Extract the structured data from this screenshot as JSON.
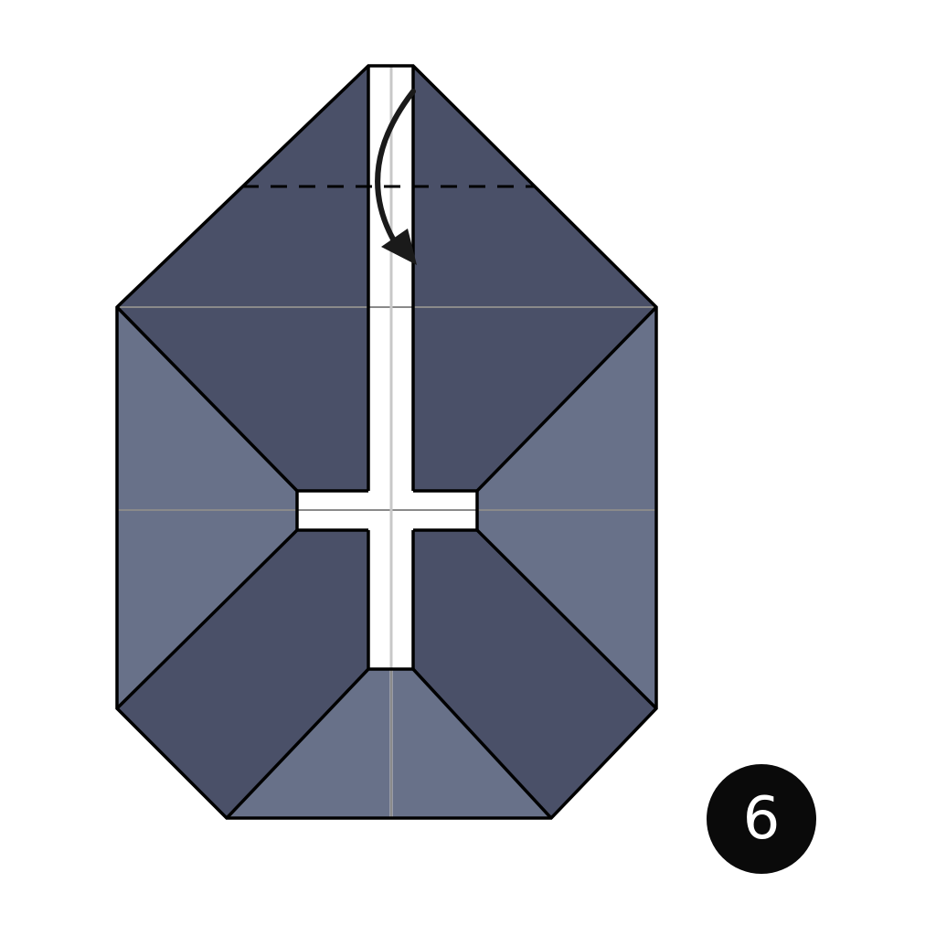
{
  "step": {
    "number": "6"
  },
  "colors": {
    "background": "#ffffff",
    "paper_dark": "#4a5068",
    "paper_light": "#687189",
    "paper_white": "#ffffff",
    "outline": "#000000",
    "reference_crease": "#8a8a8a",
    "white_crease": "#c8c8c8",
    "badge": "#0a0a0a",
    "badge_text": "#ffffff"
  },
  "instruction": {
    "fold_line_style": "valley-fold-dashed",
    "arrow_direction": "down",
    "icons": [
      "fold-arrow-icon"
    ]
  }
}
